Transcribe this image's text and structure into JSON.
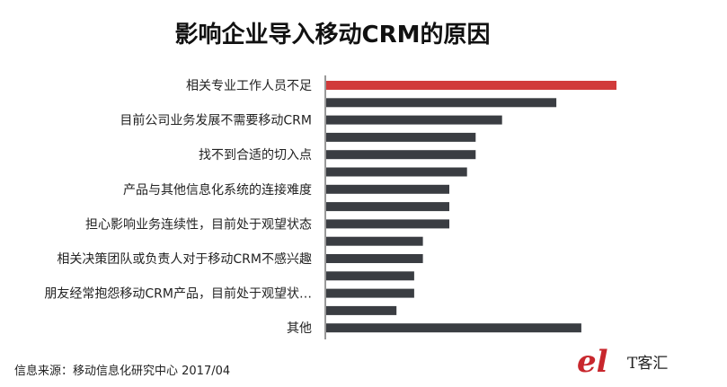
{
  "chart_data": {
    "type": "bar",
    "orientation": "horizontal",
    "title": "影响企业导入移动CRM的原因",
    "categories": [
      "相关专业工作人员不足",
      "目前公司业务发展不需要移动CRM",
      "找不到合适的切入点",
      "产品与其他信息化系统的连接难度",
      "担心影响业务连续性，目前处于观望状态",
      "相关决策团队或负责人对于移动CRM不感兴趣",
      "朋友经常抱怨移动CRM产品，目前处于观望状…",
      "其他"
    ],
    "bars": [
      {
        "value": 100,
        "group": 0,
        "highlight": true
      },
      {
        "value": 79.3,
        "group": 0
      },
      {
        "value": 60.6,
        "group": 1
      },
      {
        "value": 51.5,
        "group": 1
      },
      {
        "value": 51.5,
        "group": 2
      },
      {
        "value": 48.5,
        "group": 2
      },
      {
        "value": 42.4,
        "group": 3
      },
      {
        "value": 42.4,
        "group": 3
      },
      {
        "value": 42.4,
        "group": 4
      },
      {
        "value": 33.3,
        "group": 4
      },
      {
        "value": 33.3,
        "group": 5
      },
      {
        "value": 30.3,
        "group": 5
      },
      {
        "value": 30.3,
        "group": 6
      },
      {
        "value": 24.2,
        "group": 6
      },
      {
        "value": 87.9,
        "group": 7
      }
    ],
    "xlim": [
      0,
      100
    ],
    "grid": false,
    "legend": "none",
    "colors": {
      "highlight": "#d13b3b",
      "bar": "#3a3d42",
      "axis": "#333333"
    }
  },
  "footer": {
    "source": "信息来源：移动信息化研究中心 2017/04"
  },
  "brand": {
    "text": "T客汇",
    "mark": "el",
    "color": "#c8272d"
  }
}
